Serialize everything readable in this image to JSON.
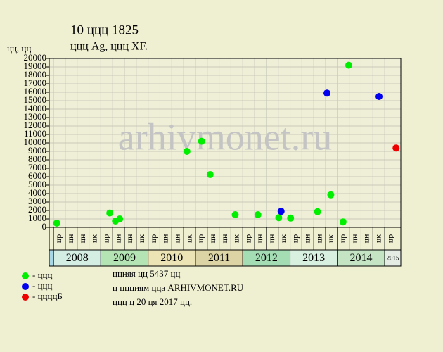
{
  "chart_data": {
    "type": "scatter",
    "title": "10 ццц 1825",
    "subtitle": "ццц Ag, ццц XF.",
    "y_label": "цц, цц",
    "watermark": "arhivmonet.ru",
    "xlim": [
      2007.91,
      2015.34
    ],
    "ylim": [
      0,
      20000
    ],
    "yticks": [
      0,
      1000,
      2000,
      3000,
      4000,
      5000,
      6000,
      7000,
      8000,
      9000,
      10000,
      11000,
      12000,
      13000,
      14000,
      15000,
      16000,
      17000,
      18000,
      19000,
      20000
    ],
    "grid": true,
    "years": [
      {
        "year": 2008,
        "color": "#d4eee4",
        "quarters": [
          "цр",
          "цн",
          "цн",
          "цк"
        ]
      },
      {
        "year": 2009,
        "color": "#b4e4b4",
        "quarters": [
          "цр",
          "цн",
          "цн",
          "цк"
        ]
      },
      {
        "year": 2010,
        "color": "#ece4b4",
        "quarters": [
          "цр",
          "цн",
          "цн",
          "цк"
        ]
      },
      {
        "year": 2011,
        "color": "#dcd4a4",
        "quarters": [
          "цр",
          "цн",
          "цн",
          "цк"
        ]
      },
      {
        "year": 2012,
        "color": "#a4dcb4",
        "quarters": [
          "цр",
          "цн",
          "цн",
          "цк"
        ]
      },
      {
        "year": 2013,
        "color": "#d8f0e0",
        "quarters": [
          "цр",
          "цн",
          "цн",
          "цк"
        ]
      },
      {
        "year": 2014,
        "color": "#c4e4c4",
        "quarters": [
          "цр",
          "цн",
          "цн",
          "цк"
        ]
      },
      {
        "year": 2015,
        "color": "#e4ece4",
        "quarters": [
          "цр"
        ]
      }
    ],
    "series": [
      {
        "name": "- ццц",
        "color": "#00ee00",
        "x": [
          2008.07,
          2009.19,
          2009.31,
          2009.4,
          2010.82,
          2011.13,
          2011.31,
          2011.84,
          2012.32,
          2012.76,
          2013.01,
          2013.58,
          2013.86,
          2014.12,
          2014.24
        ],
        "values": [
          500,
          1700,
          750,
          1000,
          9000,
          10200,
          6250,
          1500,
          1500,
          1150,
          1100,
          1850,
          3850,
          650,
          19200
        ]
      },
      {
        "name": "- ццц",
        "color": "#0000ee",
        "x": [
          2012.81,
          2013.78,
          2014.88
        ],
        "values": [
          1900,
          15900,
          15500
        ]
      },
      {
        "name": "- ццццБ",
        "color": "#ee0000",
        "x": [
          2015.24
        ],
        "values": [
          9400
        ]
      }
    ],
    "notes": [
      "ццняя цц 5437 цц",
      "ц ццциям цца ARHIVMONET.RU",
      "ццц ц 20 ця 2017 цц."
    ]
  }
}
